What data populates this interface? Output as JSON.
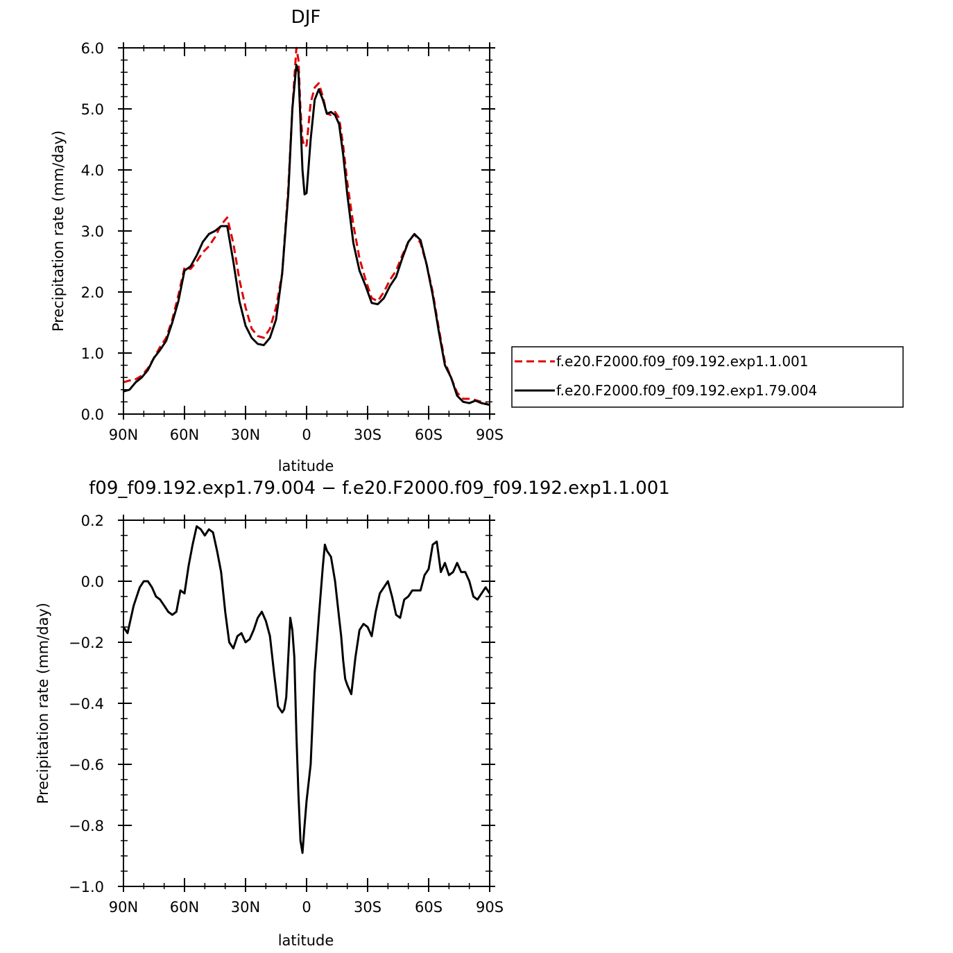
{
  "chart_data": [
    {
      "type": "line",
      "title": "DJF",
      "xlabel": "latitude",
      "ylabel": "Precipitation rate (mm/day)",
      "xlim": [
        -90,
        90
      ],
      "ylim": [
        0,
        6
      ],
      "x_ticks": [
        -90,
        -60,
        -30,
        0,
        30,
        60,
        90
      ],
      "x_tick_labels": [
        "90N",
        "60N",
        "30N",
        "0",
        "30S",
        "60S",
        "90S"
      ],
      "y_ticks": [
        0,
        1,
        2,
        3,
        4,
        5,
        6
      ],
      "y_tick_labels": [
        "0.0",
        "1.0",
        "2.0",
        "3.0",
        "4.0",
        "5.0",
        "6.0"
      ],
      "legend": {
        "placement": "right"
      },
      "series": [
        {
          "name": "f.e20.F2000.f09_f09.192.exp1.1.001",
          "color": "#e00000",
          "dash": "dashed",
          "x": [
            -90,
            -87,
            -84,
            -81,
            -78,
            -75,
            -72,
            -69,
            -66,
            -63,
            -60,
            -57,
            -54,
            -51,
            -48,
            -45,
            -42,
            -39,
            -36,
            -33,
            -30,
            -27,
            -24,
            -21,
            -18,
            -15,
            -12,
            -9,
            -7,
            -5,
            -4,
            -3,
            -2,
            -1,
            0,
            2,
            4,
            6,
            8,
            10,
            12,
            14,
            16,
            18,
            20,
            23,
            26,
            29,
            32,
            35,
            38,
            41,
            44,
            47,
            50,
            53,
            56,
            59,
            62,
            65,
            68,
            71,
            74,
            77,
            80,
            83,
            86,
            90
          ],
          "y": [
            0.52,
            0.55,
            0.57,
            0.63,
            0.75,
            0.92,
            1.1,
            1.25,
            1.55,
            1.95,
            2.4,
            2.38,
            2.5,
            2.65,
            2.75,
            2.9,
            3.1,
            3.22,
            2.8,
            2.2,
            1.75,
            1.4,
            1.28,
            1.25,
            1.4,
            1.75,
            2.3,
            3.7,
            5.0,
            6.0,
            5.8,
            5.0,
            4.5,
            4.38,
            4.4,
            5.1,
            5.35,
            5.42,
            5.2,
            4.92,
            4.9,
            4.95,
            4.85,
            4.4,
            3.8,
            3.1,
            2.55,
            2.2,
            1.9,
            1.85,
            2.0,
            2.2,
            2.35,
            2.6,
            2.82,
            2.95,
            2.8,
            2.45,
            2.0,
            1.4,
            0.85,
            0.6,
            0.35,
            0.25,
            0.25,
            0.23,
            0.2,
            0.15
          ]
        },
        {
          "name": "f.e20.F2000.f09_f09.192.exp1.79.004",
          "color": "#000000",
          "dash": "solid",
          "x": [
            -90,
            -87,
            -84,
            -81,
            -78,
            -75,
            -72,
            -69,
            -66,
            -63,
            -60,
            -57,
            -54,
            -51,
            -48,
            -45,
            -42,
            -39,
            -36,
            -33,
            -30,
            -27,
            -24,
            -21,
            -18,
            -15,
            -12,
            -9,
            -7,
            -5,
            -4,
            -3,
            -2,
            -1,
            0,
            2,
            4,
            6,
            8,
            10,
            12,
            14,
            16,
            18,
            20,
            23,
            26,
            29,
            32,
            35,
            38,
            41,
            44,
            47,
            50,
            53,
            56,
            59,
            62,
            65,
            68,
            71,
            74,
            77,
            80,
            83,
            86,
            90
          ],
          "y": [
            0.37,
            0.4,
            0.52,
            0.6,
            0.72,
            0.92,
            1.05,
            1.2,
            1.5,
            1.85,
            2.35,
            2.42,
            2.6,
            2.82,
            2.95,
            3.0,
            3.08,
            3.08,
            2.5,
            1.85,
            1.45,
            1.25,
            1.15,
            1.13,
            1.25,
            1.55,
            2.3,
            3.6,
            5.0,
            5.72,
            5.6,
            4.8,
            4.0,
            3.6,
            3.62,
            4.5,
            5.15,
            5.32,
            5.15,
            4.92,
            4.95,
            4.9,
            4.75,
            4.25,
            3.6,
            2.8,
            2.35,
            2.1,
            1.82,
            1.8,
            1.9,
            2.1,
            2.25,
            2.55,
            2.82,
            2.95,
            2.85,
            2.45,
            1.95,
            1.35,
            0.8,
            0.6,
            0.3,
            0.2,
            0.18,
            0.22,
            0.18,
            0.15
          ]
        }
      ]
    },
    {
      "type": "line",
      "title": "f09_f09.192.exp1.79.004 − f.e20.F2000.f09_f09.192.exp1.1.001",
      "xlabel": "latitude",
      "ylabel": "Precipitation rate (mm/day)",
      "xlim": [
        -90,
        90
      ],
      "ylim": [
        -1.0,
        0.2
      ],
      "x_ticks": [
        -90,
        -60,
        -30,
        0,
        30,
        60,
        90
      ],
      "x_tick_labels": [
        "90N",
        "60N",
        "30N",
        "0",
        "30S",
        "60S",
        "90S"
      ],
      "y_ticks": [
        -1.0,
        -0.8,
        -0.6,
        -0.4,
        -0.2,
        0.0,
        0.2
      ],
      "y_tick_labels": [
        "−1.0",
        "−0.8",
        "−0.6",
        "−0.4",
        "−0.2",
        "0.0",
        "0.2"
      ],
      "series": [
        {
          "color": "#000000",
          "dash": "solid",
          "x": [
            -90,
            -88,
            -85,
            -82,
            -80,
            -78,
            -76,
            -74,
            -72,
            -70,
            -68,
            -66,
            -64,
            -62,
            -60,
            -58,
            -56,
            -54,
            -52,
            -50,
            -48,
            -46,
            -44,
            -42,
            -40,
            -38,
            -36,
            -34,
            -32,
            -30,
            -28,
            -26,
            -24,
            -22,
            -20,
            -18,
            -16,
            -14,
            -12,
            -11,
            -10,
            -9,
            -8,
            -7,
            -6,
            -5,
            -4,
            -3,
            -2,
            -1,
            0,
            2,
            4,
            6,
            8,
            9,
            10,
            12,
            14,
            16,
            17,
            18,
            19,
            20,
            22,
            24,
            26,
            28,
            30,
            32,
            34,
            36,
            38,
            40,
            42,
            44,
            46,
            48,
            50,
            52,
            54,
            56,
            58,
            60,
            62,
            64,
            66,
            68,
            70,
            72,
            74,
            76,
            78,
            80,
            82,
            84,
            86,
            88,
            90
          ],
          "y": [
            -0.15,
            -0.17,
            -0.08,
            -0.02,
            0.0,
            0.0,
            -0.02,
            -0.05,
            -0.06,
            -0.08,
            -0.1,
            -0.11,
            -0.1,
            -0.03,
            -0.04,
            0.05,
            0.12,
            0.18,
            0.17,
            0.15,
            0.17,
            0.16,
            0.1,
            0.03,
            -0.1,
            -0.2,
            -0.22,
            -0.18,
            -0.17,
            -0.2,
            -0.19,
            -0.16,
            -0.12,
            -0.1,
            -0.13,
            -0.18,
            -0.3,
            -0.41,
            -0.43,
            -0.42,
            -0.38,
            -0.25,
            -0.12,
            -0.16,
            -0.25,
            -0.5,
            -0.7,
            -0.85,
            -0.89,
            -0.8,
            -0.72,
            -0.6,
            -0.3,
            -0.12,
            0.05,
            0.12,
            0.1,
            0.08,
            0.0,
            -0.12,
            -0.18,
            -0.26,
            -0.32,
            -0.34,
            -0.37,
            -0.25,
            -0.16,
            -0.14,
            -0.15,
            -0.18,
            -0.1,
            -0.04,
            -0.02,
            0.0,
            -0.05,
            -0.11,
            -0.12,
            -0.06,
            -0.05,
            -0.03,
            -0.03,
            -0.03,
            0.02,
            0.04,
            0.12,
            0.13,
            0.03,
            0.06,
            0.02,
            0.03,
            0.06,
            0.03,
            0.03,
            0.0,
            -0.05,
            -0.06,
            -0.04,
            -0.02,
            -0.04
          ]
        }
      ]
    }
  ]
}
